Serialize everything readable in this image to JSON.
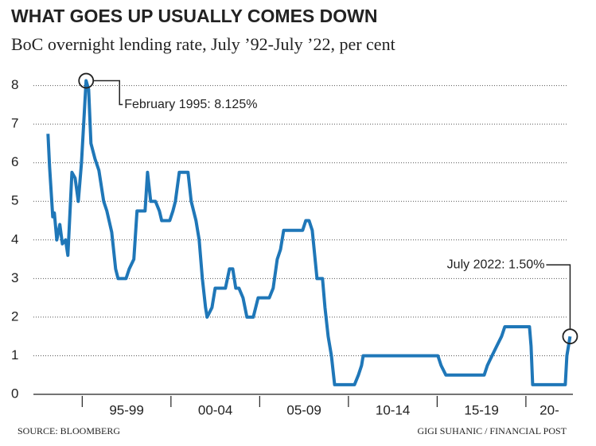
{
  "chart_data": {
    "type": "line",
    "title": "WHAT GOES UP USUALLY COMES DOWN",
    "subtitle": "BoC overnight lending rate, July ’92-July ’22, per cent",
    "source": "SOURCE: BLOOMBERG",
    "credit": "GIGI SUHANIC / FINANCIAL POST",
    "categories": [
      "95-99",
      "00-04",
      "05-09",
      "10-14",
      "15-19",
      "20-"
    ],
    "xlim": [
      1992.25,
      2022.65
    ],
    "xticks": [
      1995,
      2000,
      2005,
      2010,
      2015,
      2020
    ],
    "ylim": [
      0,
      8.2
    ],
    "yticks": [
      0,
      1,
      2,
      3,
      4,
      5,
      6,
      7,
      8
    ],
    "grid": true,
    "series": [
      {
        "color": "#1f77b8",
        "x": [
          1993.07,
          1993.16,
          1993.34,
          1993.43,
          1993.57,
          1993.74,
          1993.88,
          1994.06,
          1994.19,
          1994.42,
          1994.6,
          1994.78,
          1994.96,
          1995.22,
          1995.36,
          1995.49,
          1995.72,
          1995.94,
          1996.21,
          1996.39,
          1996.66,
          1996.88,
          1997.02,
          1997.47,
          1997.65,
          1997.91,
          1998.09,
          1998.54,
          1998.68,
          1998.86,
          1999.13,
          1999.35,
          1999.48,
          1999.93,
          2000.11,
          2000.25,
          2000.47,
          2000.96,
          2001.14,
          2001.41,
          2001.59,
          2001.77,
          2001.95,
          2002.04,
          2002.31,
          2002.49,
          2003.07,
          2003.3,
          2003.48,
          2003.65,
          2003.83,
          2004.06,
          2004.28,
          2004.64,
          2004.91,
          2005.54,
          2005.76,
          2005.99,
          2006.17,
          2006.35,
          2007.42,
          2007.6,
          2007.78,
          2007.96,
          2008.23,
          2008.54,
          2008.68,
          2008.86,
          2009.04,
          2009.22,
          2010.34,
          2010.56,
          2010.74,
          2010.83,
          2015.04,
          2015.22,
          2015.49,
          2017.65,
          2017.83,
          2018.09,
          2018.36,
          2018.63,
          2018.81,
          2020.2,
          2020.29,
          2020.38,
          2022.22,
          2022.31,
          2022.49
        ],
        "values": [
          6.75,
          5.9,
          4.6,
          4.7,
          4.0,
          4.4,
          3.9,
          4.0,
          3.6,
          5.75,
          5.6,
          5.0,
          6.0,
          8.125,
          7.9,
          6.5,
          6.1,
          5.8,
          5.0,
          4.75,
          4.2,
          3.25,
          3.0,
          3.0,
          3.25,
          3.5,
          4.75,
          4.75,
          5.75,
          5.0,
          5.0,
          4.75,
          4.5,
          4.5,
          4.75,
          5.0,
          5.75,
          5.75,
          5.0,
          4.5,
          4.0,
          3.0,
          2.25,
          2.0,
          2.25,
          2.75,
          2.75,
          3.25,
          3.25,
          2.75,
          2.75,
          2.5,
          2.0,
          2.0,
          2.5,
          2.5,
          2.75,
          3.5,
          3.75,
          4.25,
          4.25,
          4.5,
          4.5,
          4.25,
          3.0,
          3.0,
          2.25,
          1.5,
          1.0,
          0.25,
          0.25,
          0.5,
          0.75,
          1.0,
          1.0,
          0.75,
          0.5,
          0.5,
          0.75,
          1.0,
          1.25,
          1.5,
          1.75,
          1.75,
          1.25,
          0.25,
          0.25,
          1.0,
          1.5
        ]
      }
    ],
    "annotations": [
      {
        "text": "February 1995: 8.125%",
        "x": 1995.22,
        "y": 8.125
      },
      {
        "text": "July 2022: 1.50%",
        "x": 2022.49,
        "y": 1.5
      }
    ]
  }
}
